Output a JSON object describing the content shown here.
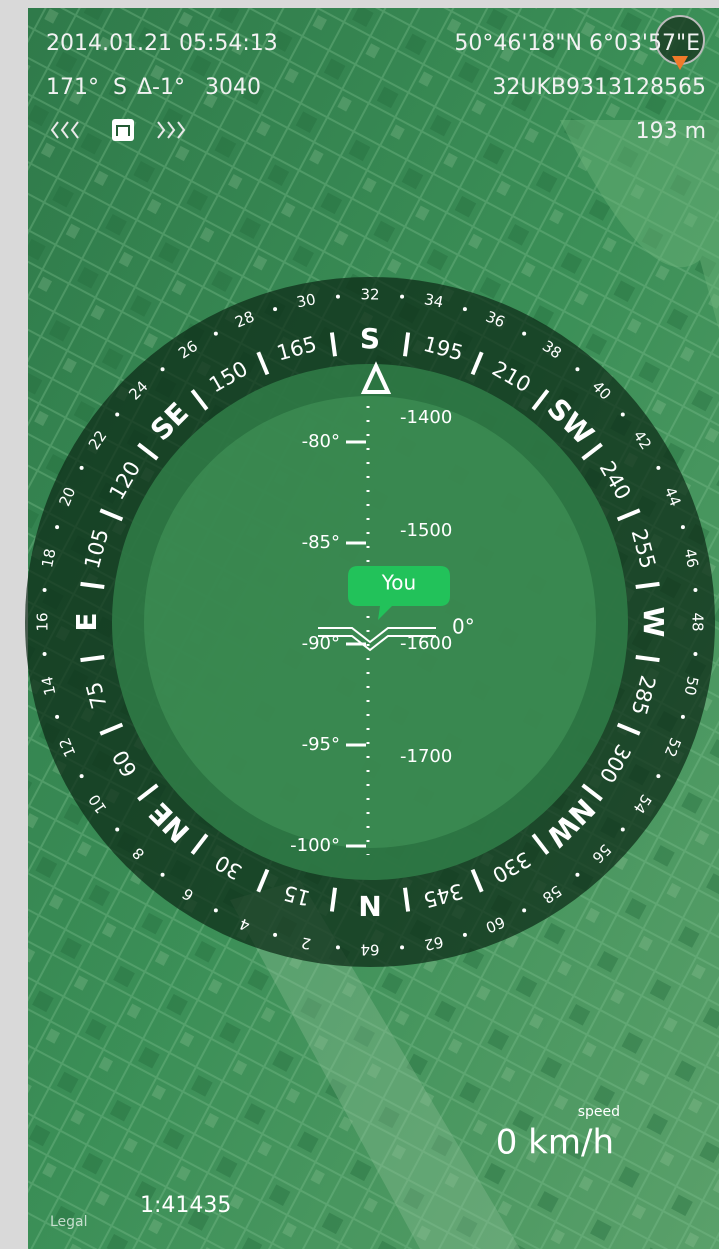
{
  "status": {
    "datetime": "2014.01.21 05:54:13",
    "coordinates": "50°46'18\"N 6°03'57\"E",
    "heading": "171°",
    "direction": "S",
    "delta": "Δ-1°",
    "value": "3040",
    "grid_ref": "32UKB9313128565",
    "altitude": "193 m"
  },
  "compass": {
    "bearing_labels": [
      "N",
      "15",
      "30",
      "NE",
      "60",
      "75",
      "E",
      "105",
      "120",
      "SE",
      "150",
      "165",
      "S",
      "195",
      "210",
      "SW",
      "240",
      "255",
      "W",
      "285",
      "300",
      "NW",
      "330",
      "345"
    ],
    "mil_labels": [
      "2",
      "4",
      "6",
      "8",
      "10",
      "12",
      "14",
      "16",
      "18",
      "20",
      "22",
      "24",
      "26",
      "28",
      "30",
      "32",
      "34",
      "36",
      "38",
      "40",
      "42",
      "44",
      "46",
      "48",
      "50",
      "52",
      "54",
      "56",
      "58",
      "60",
      "62",
      "64"
    ],
    "pitch_labels": [
      "-80°",
      "-85°",
      "-90°",
      "-95°",
      "-100°"
    ],
    "distance_labels": [
      "-1400",
      "-1500",
      "-1600",
      "-1700"
    ],
    "roll": "0°",
    "marker": "You"
  },
  "footer": {
    "speed_label": "speed",
    "speed": "0 km/h",
    "scale": "1:41435",
    "legal": "Legal"
  }
}
